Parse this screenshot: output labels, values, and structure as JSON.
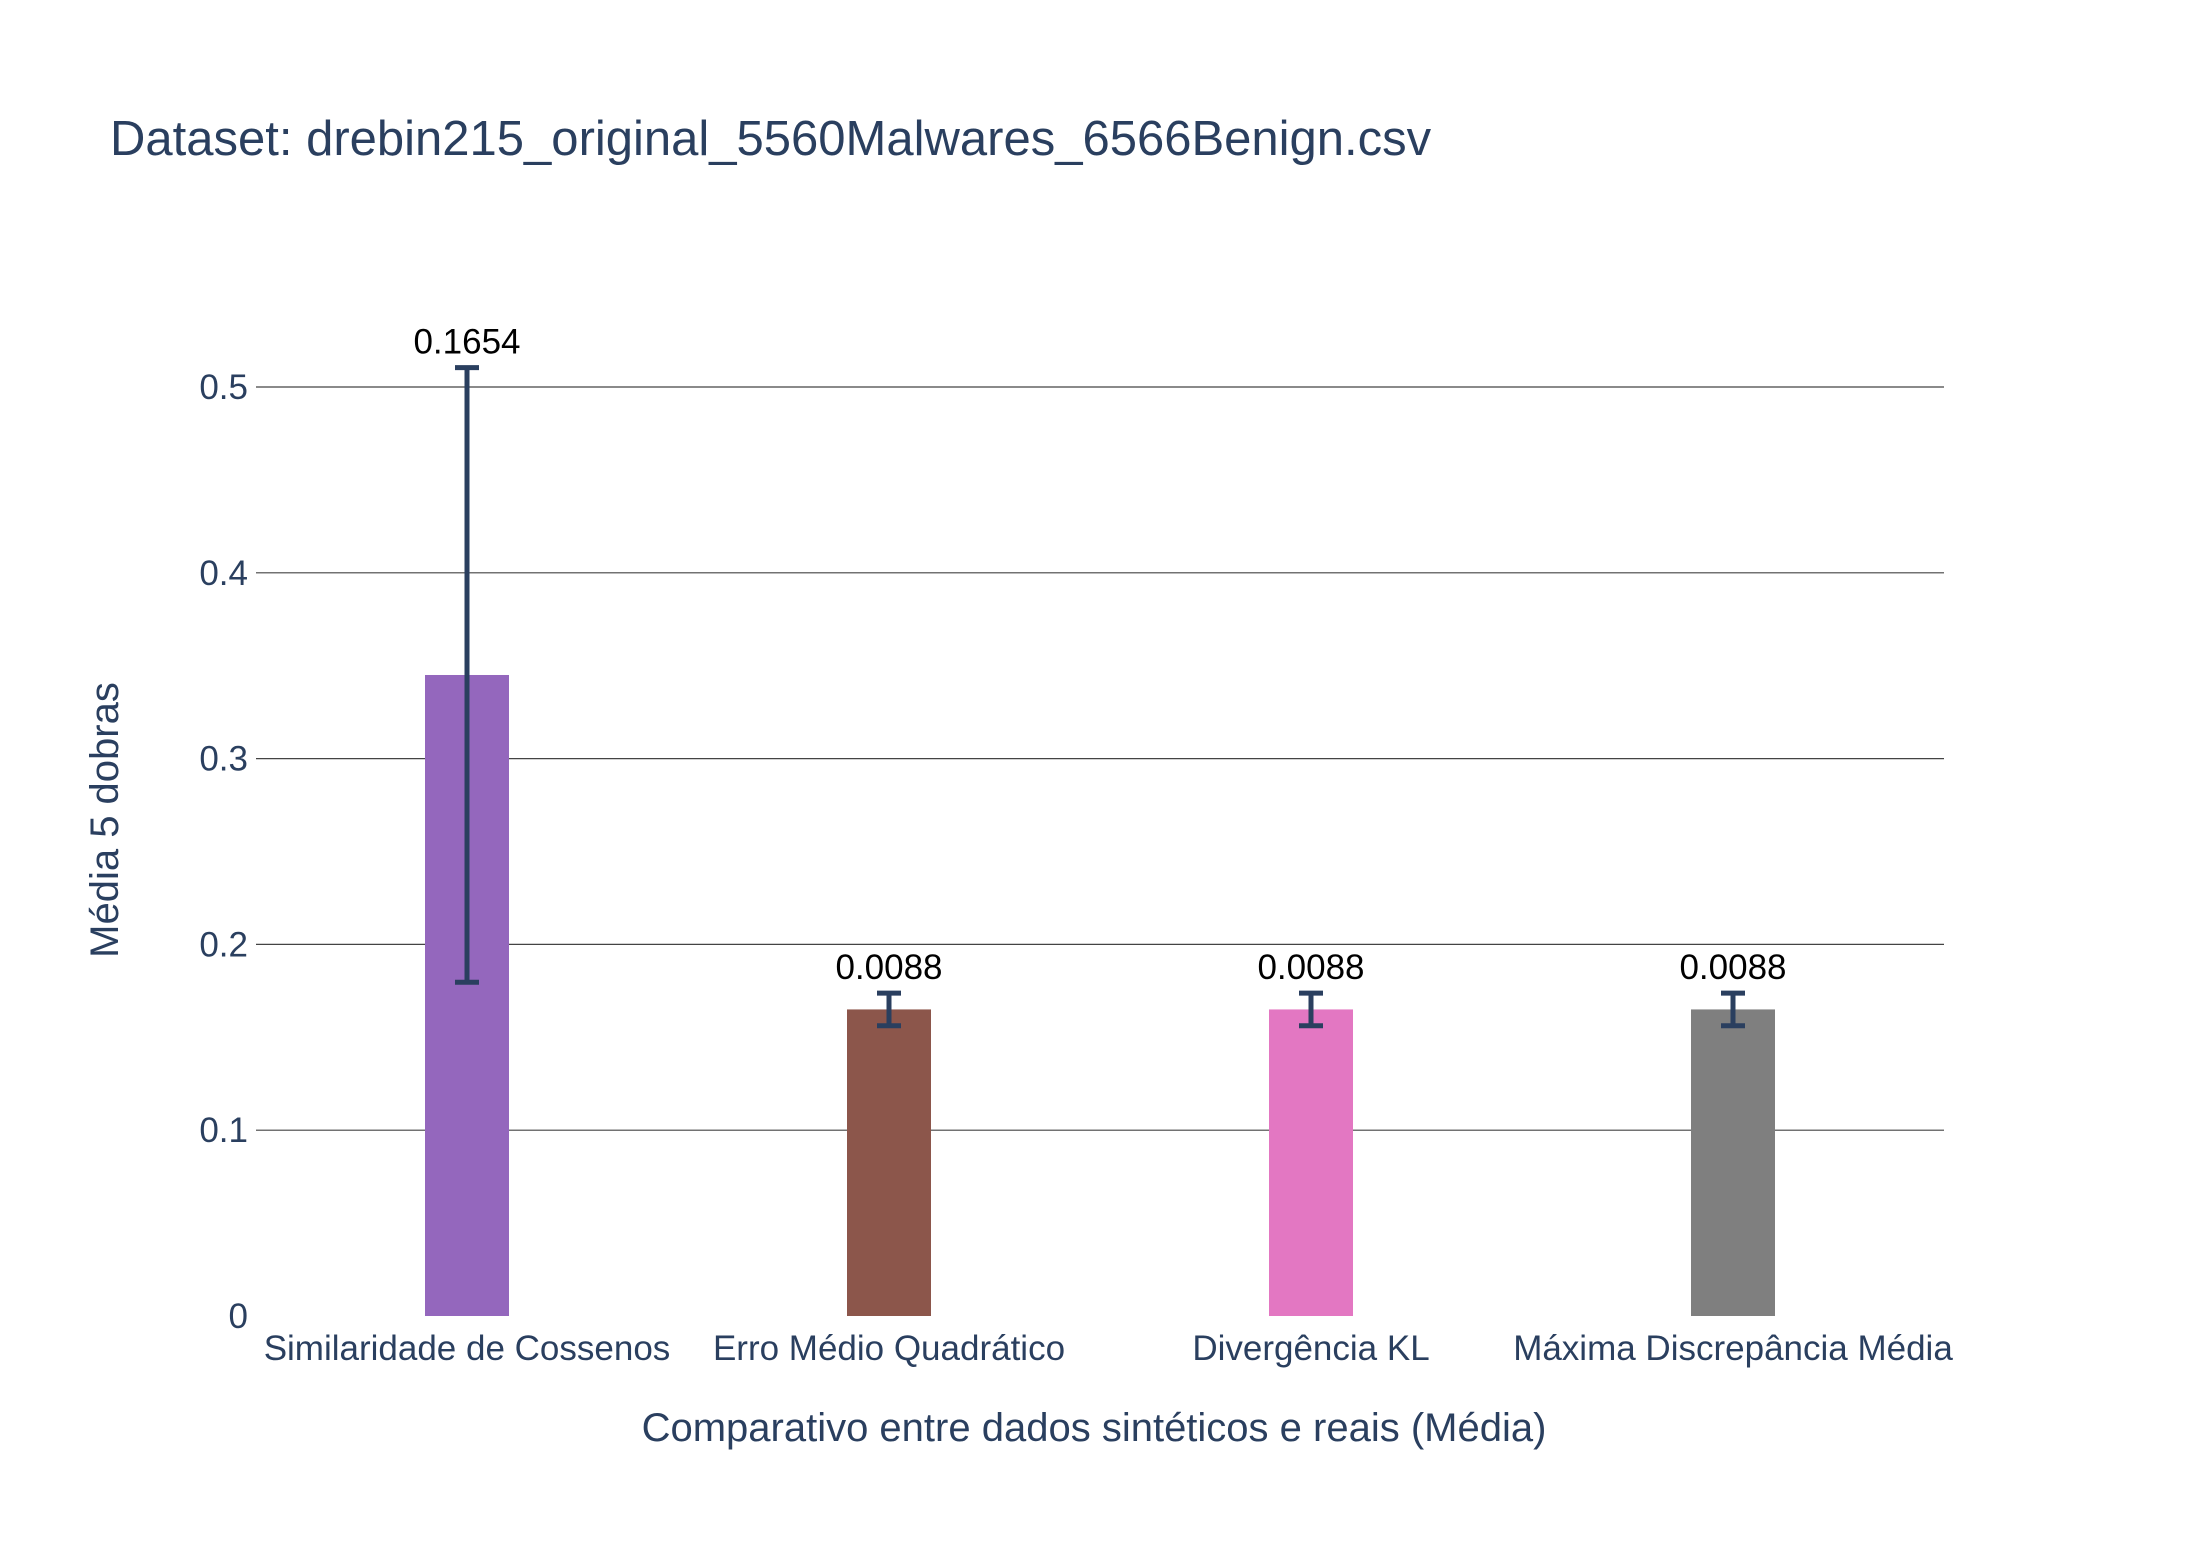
{
  "chart_data": {
    "type": "bar",
    "title": "Dataset: drebin215_original_5560Malwares_6566Benign.csv",
    "xlabel": "Comparativo entre dados sintéticos e reais (Média)",
    "ylabel": "Média 5 dobras",
    "ylim": [
      0,
      0.5
    ],
    "yticks": [
      0,
      0.1,
      0.2,
      0.3,
      0.4,
      0.5
    ],
    "ytick_labels": [
      "0",
      "0.1",
      "0.2",
      "0.3",
      "0.4",
      "0.5"
    ],
    "grid": true,
    "categories": [
      "Similaridade de Cossenos",
      "Erro Médio Quadrático",
      "Divergência KL",
      "Máxima Discrepância Média"
    ],
    "values": [
      0.345,
      0.165,
      0.165,
      0.165
    ],
    "error": [
      0.1654,
      0.0088,
      0.0088,
      0.0088
    ],
    "data_labels": [
      "0.1654",
      "0.0088",
      "0.0088",
      "0.0088"
    ],
    "colors": [
      "#9467bd",
      "#8c564b",
      "#e377c2",
      "#7f7f7f"
    ],
    "error_color": "#2a3f5f"
  }
}
